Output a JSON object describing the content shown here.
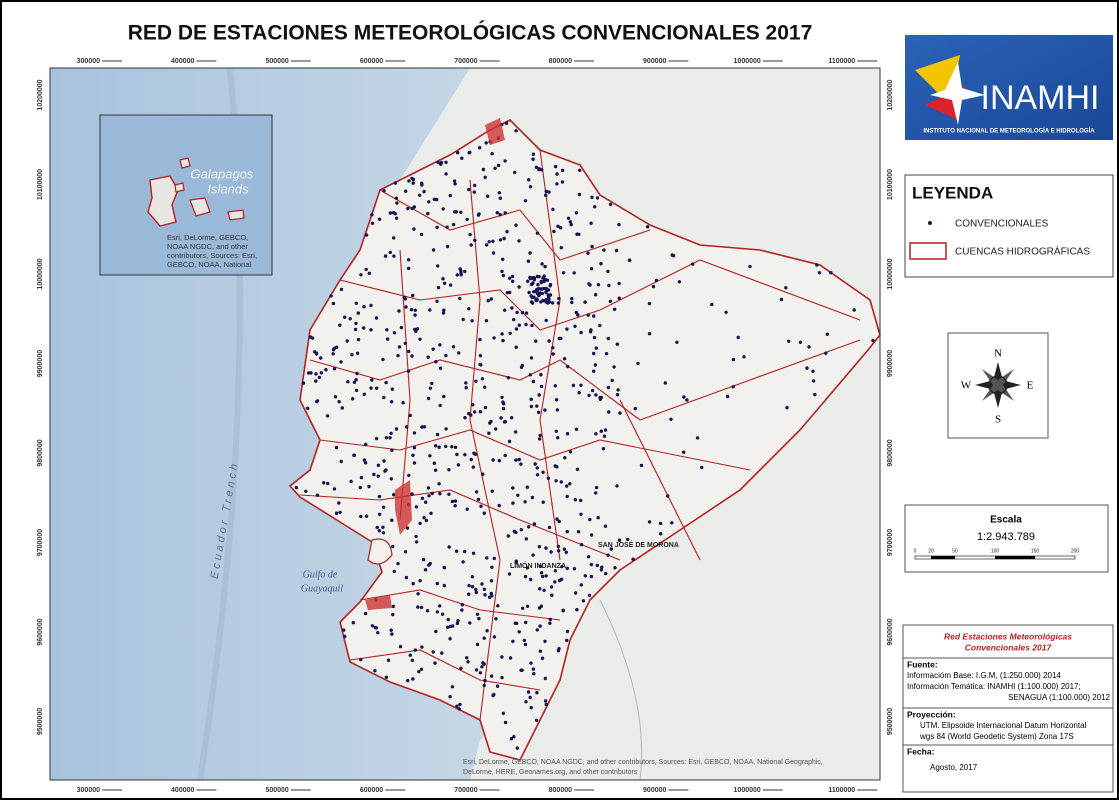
{
  "title": "RED DE ESTACIONES METEOROLÓGICAS CONVENCIONALES 2017",
  "map": {
    "x_ticks": [
      "300000",
      "400000",
      "500000",
      "600000",
      "700000",
      "800000",
      "900000",
      "1000000",
      "1100000"
    ],
    "y_ticks": [
      "10200000",
      "10100000",
      "10000000",
      "9900000",
      "9800000",
      "9700000",
      "9600000",
      "9500000"
    ],
    "labels": {
      "trench": "Ecuador Trench",
      "gulf_1": "Gulfo de",
      "gulf_2": "Guayaquil",
      "morona": "SAN JOSÉ DE MORONA",
      "limon": "LIMÓN INDANZA"
    },
    "attribution_1": "Esri, DeLorme, GEBCO, NOAA NGDC, and other contributors, Sources: Esri, GEBCO, NOAA, National Geographic,",
    "attribution_2": "DeLorme, HERE, Geonames.org, and other contributors",
    "inset": {
      "label_1": "Galapagos",
      "label_2": "Islands",
      "attribution_1": "Esri, DeLorme, GEBCO,",
      "attribution_2": "NOAA NGDC, and other",
      "attribution_3": "contributors, Sources: Esri,",
      "attribution_4": "GEBCO, NOAA, National"
    }
  },
  "logo": {
    "name": "INAMHI",
    "subtitle": "INSTITUTO NACIONAL DE METEOROLOGÍA E HIDROLOGÍA"
  },
  "legend": {
    "title": "LEYENDA",
    "items": [
      "CONVENCIONALES",
      "CUENCAS HIDROGRÁFICAS"
    ]
  },
  "compass": {
    "n": "N",
    "e": "E",
    "s": "S",
    "w": "W"
  },
  "scale": {
    "title": "Escala",
    "ratio": "1:2.943.789",
    "ticks": [
      "0",
      "20",
      "50",
      "100",
      "150",
      "200"
    ]
  },
  "info": {
    "title_1": "Red Estaciones Meteorológicas",
    "title_2": "Convencionales 2017",
    "source_head": "Fuente:",
    "source_1": "Informacióm Base: I.G.M, (1:250.000) 2014",
    "source_2": "Información Temática: INAMHI (1:100.000) 2017;",
    "source_3": "SENAGUA (1:100.000) 2012",
    "proj_head": "Proyección:",
    "proj_1": "UTM. Elipsoide Internacional Datum Horizontal",
    "proj_2": "wgs 84 (World Geodetic System) Zona 17S",
    "date_head": "Fecha:",
    "date": "Agosto, 2017"
  }
}
